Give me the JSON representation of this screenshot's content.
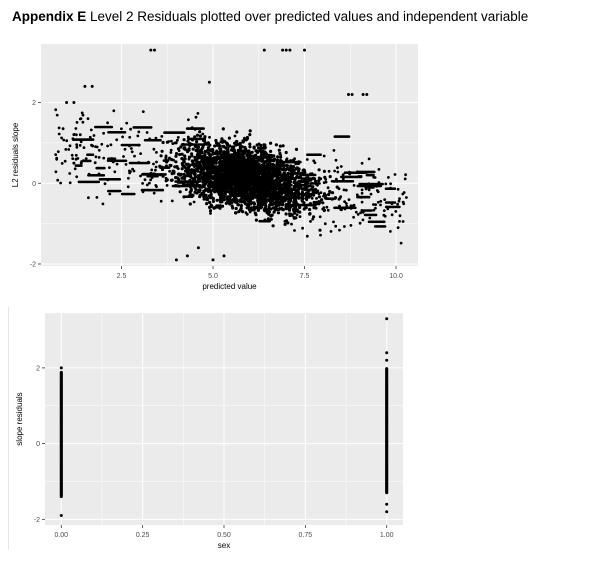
{
  "heading": {
    "bold": "Appendix E",
    "text": " Level 2 Residuals plotted over predicted values and independent variable"
  },
  "colors": {
    "panel": "#ebebeb",
    "grid": "#ffffff",
    "points": "#000000",
    "ticks": "#333333"
  },
  "chart_data": [
    {
      "type": "scatter",
      "title": "",
      "xlabel": "predicted value",
      "ylabel": "L2 residuals slope",
      "xlim": [
        0.3,
        10.6
      ],
      "ylim": [
        -2.05,
        3.45
      ],
      "xticks": [
        2.5,
        5.0,
        7.5,
        10.0
      ],
      "xtick_labels": [
        "2.5",
        "5.0",
        "7.5",
        "10.0"
      ],
      "yticks": [
        -2,
        0,
        2
      ],
      "ytick_labels": [
        "-2",
        "0",
        "2"
      ],
      "grid": true,
      "legend": "none",
      "trend": {
        "x_start": 3.0,
        "y_start": 0.6,
        "x_end": 10.2,
        "y_end": -0.55
      },
      "cloud_x_range": [
        0.7,
        10.3
      ],
      "cloud_x_peak": 5.9,
      "outliers": [
        {
          "x": 3.3,
          "y": 3.3
        },
        {
          "x": 3.4,
          "y": 3.3
        },
        {
          "x": 6.4,
          "y": 3.3
        },
        {
          "x": 6.9,
          "y": 3.3
        },
        {
          "x": 7.0,
          "y": 3.3
        },
        {
          "x": 7.1,
          "y": 3.3
        },
        {
          "x": 7.5,
          "y": 3.3
        },
        {
          "x": 4.9,
          "y": 2.5
        },
        {
          "x": 8.7,
          "y": 2.2
        },
        {
          "x": 8.8,
          "y": 2.2
        },
        {
          "x": 9.1,
          "y": 2.2
        },
        {
          "x": 9.2,
          "y": 2.2
        },
        {
          "x": 1.0,
          "y": 2.0
        },
        {
          "x": 1.2,
          "y": 2.0
        },
        {
          "x": 1.5,
          "y": 2.4
        },
        {
          "x": 1.7,
          "y": 2.4
        },
        {
          "x": 1.2,
          "y": 0.5
        },
        {
          "x": 1.4,
          "y": 0.5
        },
        {
          "x": 4.3,
          "y": -1.8
        },
        {
          "x": 4.6,
          "y": -1.6
        },
        {
          "x": 5.0,
          "y": -1.9
        },
        {
          "x": 5.3,
          "y": -1.8
        },
        {
          "x": 4.0,
          "y": -1.9
        }
      ]
    },
    {
      "type": "scatter",
      "title": "",
      "xlabel": "sex",
      "ylabel": "slope residuals",
      "xlim": [
        -0.05,
        1.05
      ],
      "ylim": [
        -2.15,
        3.45
      ],
      "xticks": [
        0.0,
        0.25,
        0.5,
        0.75,
        1.0
      ],
      "xtick_labels": [
        "0.00",
        "0.25",
        "0.50",
        "0.75",
        "1.00"
      ],
      "yticks": [
        -2,
        0,
        2
      ],
      "ytick_labels": [
        "-2",
        "0",
        "2"
      ],
      "grid": true,
      "legend": "none",
      "groups": [
        {
          "x": 0.0,
          "y_min": -1.4,
          "y_max": 1.9,
          "extra": [
            -1.9,
            2.0
          ]
        },
        {
          "x": 1.0,
          "y_min": -1.3,
          "y_max": 2.0,
          "extra": [
            -1.8,
            -1.6,
            2.2,
            2.4,
            3.3
          ]
        }
      ]
    }
  ]
}
